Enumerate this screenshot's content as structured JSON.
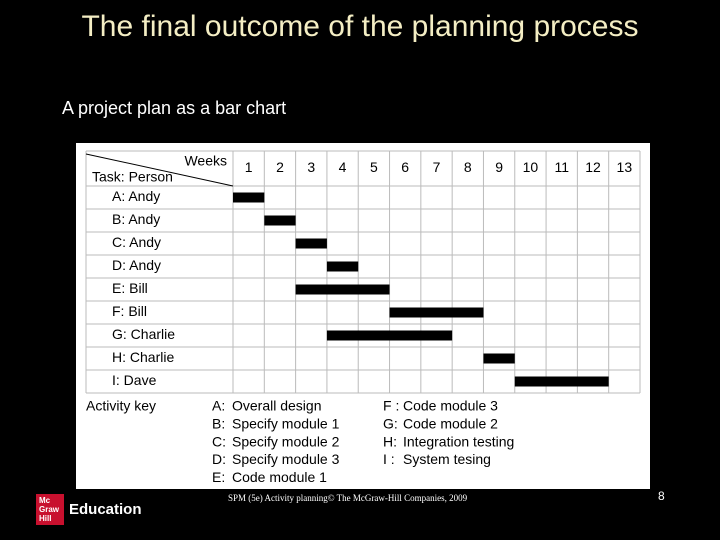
{
  "title": "The final outcome of the planning process",
  "subtitle": "A project plan as a bar chart",
  "chart_data": {
    "type": "gantt",
    "x_label": "Weeks",
    "y_label": "Task: Person",
    "xticks": [
      1,
      2,
      3,
      4,
      5,
      6,
      7,
      8,
      9,
      10,
      11,
      12,
      13
    ],
    "color": "#000000",
    "tasks": [
      {
        "label": "A: Andy",
        "start": 1,
        "end": 1
      },
      {
        "label": "B: Andy",
        "start": 2,
        "end": 2
      },
      {
        "label": "C: Andy",
        "start": 3,
        "end": 3
      },
      {
        "label": "D: Andy",
        "start": 4,
        "end": 4
      },
      {
        "label": "E: Bill",
        "start": 3,
        "end": 5
      },
      {
        "label": "F: Bill",
        "start": 6,
        "end": 8
      },
      {
        "label": "G: Charlie",
        "start": 4,
        "end": 7
      },
      {
        "label": "H: Charlie",
        "start": 9,
        "end": 9
      },
      {
        "label": "I: Dave",
        "start": 10,
        "end": 12
      }
    ],
    "key_title": "Activity key",
    "key": [
      {
        "code": "A:",
        "label": "Overall design"
      },
      {
        "code": "B:",
        "label": "Specify module 1"
      },
      {
        "code": "C:",
        "label": "Specify module 2"
      },
      {
        "code": "D:",
        "label": "Specify module 3"
      },
      {
        "code": "E:",
        "label": "Code module 1"
      },
      {
        "code": "F :",
        "label": "Code module 3"
      },
      {
        "code": "G:",
        "label": "Code module 2"
      },
      {
        "code": "H:",
        "label": "Integration testing"
      },
      {
        "code": "I :",
        "label": "System tesing"
      }
    ]
  },
  "footer": "SPM (5e) Activity planning© The McGraw-Hill Companies, 2009",
  "page_number": "8",
  "logo": {
    "mark_lines": [
      "Mc",
      "Graw",
      "Hill"
    ],
    "text": "Education"
  }
}
